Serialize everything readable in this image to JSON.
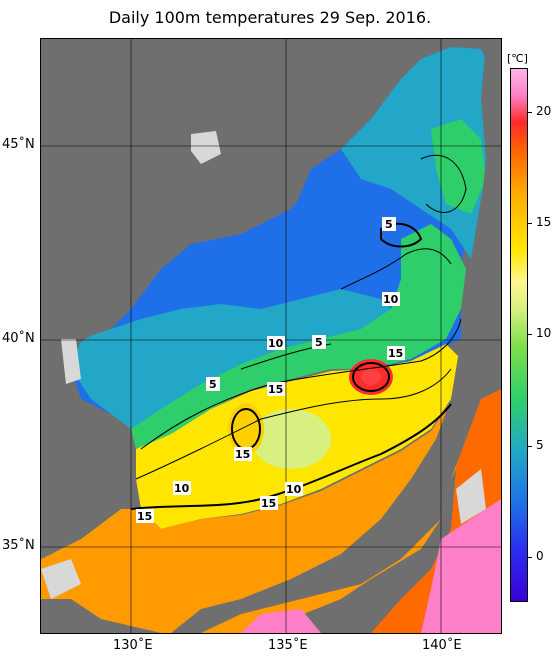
{
  "title": "Daily 100m temperatures 29 Sep. 2016.",
  "latitude_labels": [
    "45˚N",
    "40˚N",
    "35˚N"
  ],
  "longitude_labels": [
    "130˚E",
    "135˚E",
    "140˚E"
  ],
  "colorbar": {
    "unit": "[℃]",
    "ticks": [
      "20",
      "15",
      "10",
      "5",
      "0"
    ]
  },
  "contour_labels": [
    "5",
    "10",
    "5",
    "15",
    "10",
    "15",
    "15",
    "10",
    "5",
    "10",
    "15",
    "15"
  ],
  "colors": {
    "land": "#6f6f6f",
    "no_data": "#d8d8d8",
    "cold": "#1f6fe8",
    "cool": "#22a7c8",
    "mild": "#2ecf6a",
    "warm": "#ffe600",
    "hot": "#ff6a00",
    "very_hot": "#ff2a2a",
    "tropical": "#ff80c8"
  }
}
